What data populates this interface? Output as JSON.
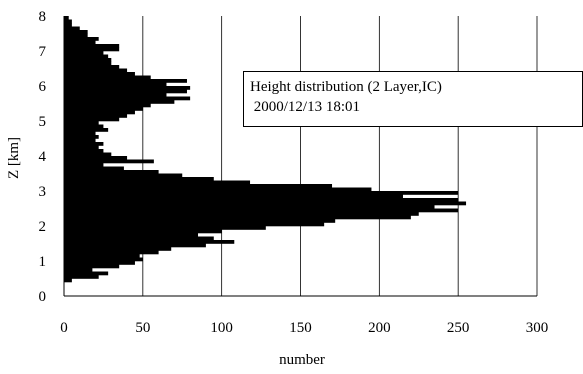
{
  "chart_data": {
    "type": "bar",
    "orientation": "horizontal",
    "xlabel": "number",
    "ylabel": "Z [km]",
    "xlim": [
      0,
      300
    ],
    "ylim": [
      0,
      8
    ],
    "x_ticks": [
      "0",
      "50",
      "100",
      "150",
      "200",
      "250",
      "300"
    ],
    "y_ticks": [
      "0",
      "1",
      "2",
      "3",
      "4",
      "5",
      "6",
      "7",
      "8"
    ],
    "grid": "vertical",
    "annotation": {
      "line1": "Height distribution (2 Layer,IC)",
      "line2": " 2000/12/13 18:01"
    },
    "bar_color": "#000000",
    "bin_height_km": 0.1,
    "z": [
      0.45,
      0.55,
      0.65,
      0.75,
      0.85,
      0.95,
      1.05,
      1.15,
      1.25,
      1.35,
      1.45,
      1.55,
      1.65,
      1.75,
      1.85,
      1.95,
      2.05,
      2.15,
      2.25,
      2.35,
      2.45,
      2.55,
      2.65,
      2.75,
      2.85,
      2.95,
      3.05,
      3.15,
      3.25,
      3.35,
      3.45,
      3.55,
      3.65,
      3.75,
      3.85,
      3.95,
      4.05,
      4.15,
      4.25,
      4.35,
      4.45,
      4.55,
      4.65,
      4.75,
      4.85,
      4.95,
      5.05,
      5.15,
      5.25,
      5.35,
      5.45,
      5.55,
      5.65,
      5.75,
      5.85,
      5.95,
      6.05,
      6.15,
      6.25,
      6.35,
      6.45,
      6.55,
      6.65,
      6.75,
      6.85,
      6.95,
      7.05,
      7.15,
      7.25,
      7.35,
      7.45,
      7.55,
      7.65,
      7.75,
      7.85,
      7.95
    ],
    "values": [
      5,
      22,
      28,
      18,
      35,
      45,
      50,
      48,
      60,
      68,
      90,
      108,
      95,
      85,
      100,
      128,
      165,
      172,
      220,
      225,
      250,
      235,
      255,
      250,
      215,
      250,
      195,
      170,
      118,
      95,
      75,
      60,
      38,
      25,
      57,
      40,
      30,
      25,
      22,
      25,
      20,
      22,
      20,
      28,
      25,
      22,
      35,
      40,
      45,
      50,
      55,
      70,
      80,
      65,
      78,
      80,
      65,
      78,
      55,
      45,
      40,
      35,
      30,
      30,
      28,
      25,
      35,
      35,
      20,
      22,
      15,
      15,
      10,
      5,
      5,
      3
    ]
  }
}
